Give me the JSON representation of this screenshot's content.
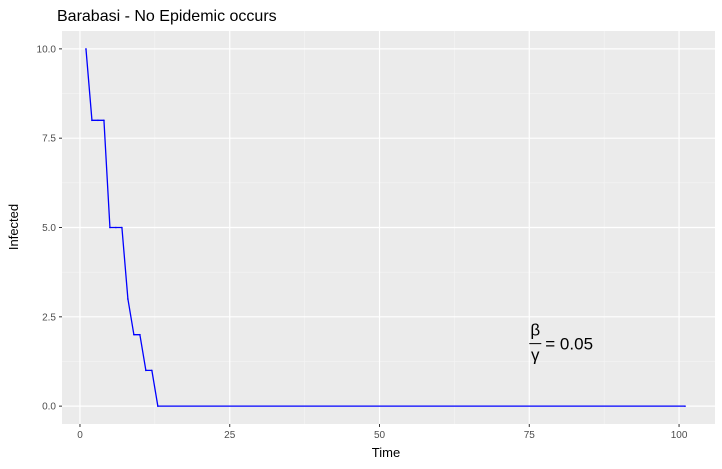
{
  "chart_data": {
    "type": "line",
    "title": "Barabasi - No Epidemic occurs",
    "xlabel": "Time",
    "ylabel": "Infected",
    "xlim": [
      -3,
      106
    ],
    "ylim": [
      -0.5,
      10.5
    ],
    "x_ticks": [
      0,
      25,
      50,
      75,
      100
    ],
    "x_tick_labels": [
      "0",
      "25",
      "50",
      "75",
      "100"
    ],
    "y_ticks": [
      0,
      2.5,
      5,
      7.5,
      10
    ],
    "y_tick_labels": [
      "0.0",
      "2.5",
      "5.0",
      "7.5",
      "10.0"
    ],
    "grid": true,
    "series": [
      {
        "color": "#0000ff",
        "x": [
          1,
          2,
          3,
          4,
          5,
          6,
          7,
          8,
          9,
          10,
          11,
          12,
          13,
          101
        ],
        "y": [
          10,
          8,
          8,
          8,
          5,
          5,
          5,
          3,
          2,
          2,
          1,
          1,
          0,
          0
        ]
      }
    ],
    "annotation": {
      "numerator": "β",
      "denominator": "γ",
      "text": "= 0.05",
      "x": 75,
      "y": 1.75
    }
  }
}
